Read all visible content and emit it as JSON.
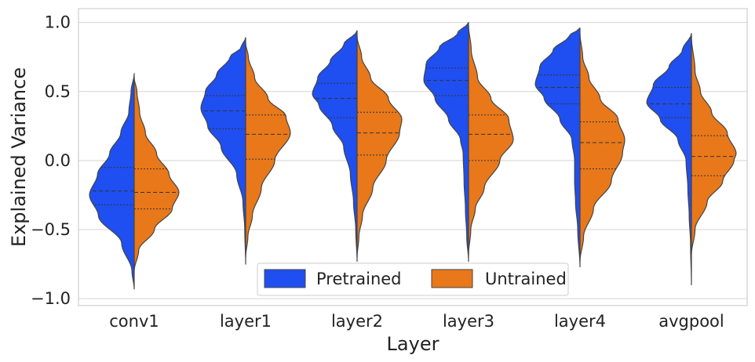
{
  "chart_data": {
    "type": "violin",
    "split": true,
    "xlabel": "Layer",
    "ylabel": "Explained Variance",
    "ylim": [
      -1.05,
      1.1
    ],
    "yticks": [
      1.0,
      0.5,
      0.0,
      -0.5,
      -1.0
    ],
    "ytick_labels": [
      "1.0",
      "0.5",
      "0.0",
      "−0.5",
      "−1.0"
    ],
    "grid": true,
    "legend": {
      "position": "bottom-center",
      "columns": 2
    },
    "categories": [
      "conv1",
      "layer1",
      "layer2",
      "layer3",
      "layer4",
      "avgpool"
    ],
    "series": [
      {
        "name": "Pretrained",
        "color": "#1f4ff0",
        "side": "left",
        "violins": [
          {
            "min": -0.93,
            "max": 0.63,
            "quartiles": [
              -0.32,
              -0.22,
              -0.05
            ],
            "profile": [
              [
                -0.93,
                0
              ],
              [
                -0.8,
                0.05
              ],
              [
                -0.6,
                0.28
              ],
              [
                -0.4,
                0.8
              ],
              [
                -0.25,
                1
              ],
              [
                -0.1,
                0.82
              ],
              [
                0.05,
                0.55
              ],
              [
                0.2,
                0.3
              ],
              [
                0.35,
                0.12
              ],
              [
                0.5,
                0.07
              ],
              [
                0.63,
                0
              ]
            ]
          },
          {
            "min": -0.75,
            "max": 0.89,
            "quartiles": [
              0.23,
              0.36,
              0.47
            ],
            "profile": [
              [
                -0.75,
                0
              ],
              [
                -0.5,
                0.02
              ],
              [
                -0.3,
                0.06
              ],
              [
                -0.1,
                0.2
              ],
              [
                0.1,
                0.55
              ],
              [
                0.25,
                0.85
              ],
              [
                0.38,
                1
              ],
              [
                0.5,
                0.9
              ],
              [
                0.62,
                0.65
              ],
              [
                0.75,
                0.35
              ],
              [
                0.82,
                0.1
              ],
              [
                0.89,
                0
              ]
            ]
          },
          {
            "min": -0.73,
            "max": 0.94,
            "quartiles": [
              0.31,
              0.45,
              0.56
            ],
            "profile": [
              [
                -0.73,
                0
              ],
              [
                -0.5,
                0.03
              ],
              [
                -0.3,
                0.08
              ],
              [
                -0.1,
                0.15
              ],
              [
                0.1,
                0.3
              ],
              [
                0.25,
                0.55
              ],
              [
                0.4,
                0.85
              ],
              [
                0.48,
                1
              ],
              [
                0.6,
                0.88
              ],
              [
                0.72,
                0.6
              ],
              [
                0.84,
                0.3
              ],
              [
                0.94,
                0
              ]
            ]
          },
          {
            "min": -0.73,
            "max": 1.0,
            "quartiles": [
              0.47,
              0.58,
              0.67
            ],
            "profile": [
              [
                -0.73,
                0
              ],
              [
                -0.55,
                0.04
              ],
              [
                -0.35,
                0.07
              ],
              [
                -0.15,
                0.1
              ],
              [
                0.05,
                0.12
              ],
              [
                0.15,
                0.18
              ],
              [
                0.3,
                0.45
              ],
              [
                0.45,
                0.75
              ],
              [
                0.58,
                1
              ],
              [
                0.7,
                0.95
              ],
              [
                0.82,
                0.65
              ],
              [
                0.92,
                0.25
              ],
              [
                1.0,
                0
              ]
            ]
          },
          {
            "min": -0.77,
            "max": 0.96,
            "quartiles": [
              0.41,
              0.53,
              0.62
            ],
            "profile": [
              [
                -0.77,
                0
              ],
              [
                -0.5,
                0.05
              ],
              [
                -0.3,
                0.1
              ],
              [
                -0.15,
                0.12
              ],
              [
                0.0,
                0.12
              ],
              [
                0.15,
                0.18
              ],
              [
                0.3,
                0.45
              ],
              [
                0.45,
                0.8
              ],
              [
                0.55,
                1
              ],
              [
                0.68,
                0.9
              ],
              [
                0.8,
                0.6
              ],
              [
                0.9,
                0.25
              ],
              [
                0.96,
                0
              ]
            ]
          },
          {
            "min": -0.9,
            "max": 0.92,
            "quartiles": [
              0.31,
              0.41,
              0.53
            ],
            "profile": [
              [
                -0.9,
                0
              ],
              [
                -0.6,
                0.02
              ],
              [
                -0.4,
                0.05
              ],
              [
                -0.2,
                0.08
              ],
              [
                0.0,
                0.12
              ],
              [
                0.15,
                0.3
              ],
              [
                0.3,
                0.7
              ],
              [
                0.42,
                1
              ],
              [
                0.55,
                0.85
              ],
              [
                0.68,
                0.5
              ],
              [
                0.8,
                0.2
              ],
              [
                0.92,
                0
              ]
            ]
          }
        ]
      },
      {
        "name": "Untrained",
        "color": "#e8781a",
        "side": "right",
        "violins": [
          {
            "min": -0.8,
            "max": 0.6,
            "quartiles": [
              -0.35,
              -0.23,
              -0.06
            ],
            "profile": [
              [
                -0.8,
                0
              ],
              [
                -0.65,
                0.1
              ],
              [
                -0.5,
                0.45
              ],
              [
                -0.35,
                0.85
              ],
              [
                -0.23,
                1
              ],
              [
                -0.1,
                0.78
              ],
              [
                0.05,
                0.5
              ],
              [
                0.2,
                0.25
              ],
              [
                0.35,
                0.12
              ],
              [
                0.5,
                0.06
              ],
              [
                0.6,
                0
              ]
            ]
          },
          {
            "min": -0.7,
            "max": 0.85,
            "quartiles": [
              0.01,
              0.19,
              0.33
            ],
            "profile": [
              [
                -0.7,
                0
              ],
              [
                -0.55,
                0.05
              ],
              [
                -0.4,
                0.15
              ],
              [
                -0.2,
                0.35
              ],
              [
                0.0,
                0.65
              ],
              [
                0.2,
                1
              ],
              [
                0.32,
                0.9
              ],
              [
                0.45,
                0.5
              ],
              [
                0.6,
                0.2
              ],
              [
                0.75,
                0.06
              ],
              [
                0.85,
                0
              ]
            ]
          },
          {
            "min": -0.7,
            "max": 0.9,
            "quartiles": [
              0.04,
              0.2,
              0.35
            ],
            "profile": [
              [
                -0.7,
                0
              ],
              [
                -0.55,
                0.04
              ],
              [
                -0.4,
                0.12
              ],
              [
                -0.2,
                0.35
              ],
              [
                0.0,
                0.65
              ],
              [
                0.2,
                0.95
              ],
              [
                0.3,
                1
              ],
              [
                0.45,
                0.7
              ],
              [
                0.6,
                0.3
              ],
              [
                0.75,
                0.1
              ],
              [
                0.9,
                0
              ]
            ]
          },
          {
            "min": -0.68,
            "max": 0.98,
            "quartiles": [
              0.0,
              0.19,
              0.33
            ],
            "profile": [
              [
                -0.68,
                0
              ],
              [
                -0.5,
                0.05
              ],
              [
                -0.35,
                0.15
              ],
              [
                -0.2,
                0.35
              ],
              [
                0.0,
                0.7
              ],
              [
                0.15,
                1
              ],
              [
                0.3,
                0.9
              ],
              [
                0.45,
                0.5
              ],
              [
                0.6,
                0.2
              ],
              [
                0.8,
                0.06
              ],
              [
                0.98,
                0
              ]
            ]
          },
          {
            "min": -0.73,
            "max": 0.92,
            "quartiles": [
              -0.06,
              0.13,
              0.28
            ],
            "profile": [
              [
                -0.73,
                0
              ],
              [
                -0.55,
                0.08
              ],
              [
                -0.35,
                0.3
              ],
              [
                -0.15,
                0.7
              ],
              [
                0.05,
                0.95
              ],
              [
                0.15,
                1
              ],
              [
                0.3,
                0.85
              ],
              [
                0.45,
                0.45
              ],
              [
                0.6,
                0.2
              ],
              [
                0.75,
                0.06
              ],
              [
                0.92,
                0
              ]
            ]
          },
          {
            "min": -0.68,
            "max": 0.9,
            "quartiles": [
              -0.11,
              0.03,
              0.18
            ],
            "profile": [
              [
                -0.68,
                0
              ],
              [
                -0.5,
                0.08
              ],
              [
                -0.3,
                0.35
              ],
              [
                -0.15,
                0.7
              ],
              [
                0.0,
                0.95
              ],
              [
                0.05,
                1
              ],
              [
                0.2,
                0.8
              ],
              [
                0.35,
                0.45
              ],
              [
                0.5,
                0.2
              ],
              [
                0.65,
                0.08
              ],
              [
                0.9,
                0
              ]
            ]
          }
        ]
      }
    ]
  }
}
